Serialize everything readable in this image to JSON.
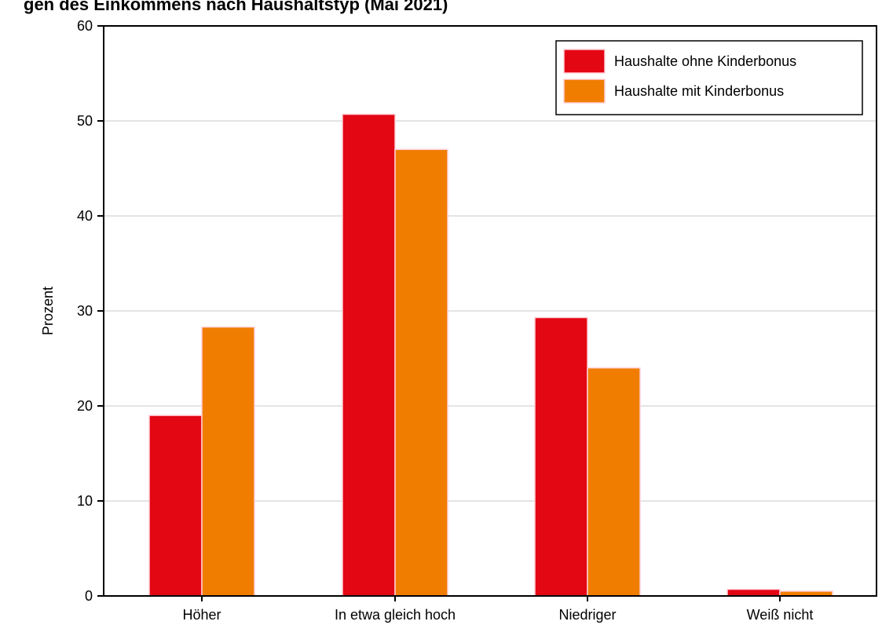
{
  "chart_data": {
    "type": "bar",
    "title": "gen des Einkommens nach Haushaltstyp (Mai 2021)",
    "ylabel": "Prozent",
    "xlabel": "",
    "ylim": [
      0,
      60
    ],
    "yticks": [
      0,
      10,
      20,
      30,
      40,
      50,
      60
    ],
    "categories": [
      "Höher",
      "In etwa gleich hoch",
      "Niedriger",
      "Weiß nicht"
    ],
    "series": [
      {
        "name": "Haushalte ohne Kinderbonus",
        "values": [
          19,
          50.7,
          29.3,
          0.7
        ],
        "color": "#e30613"
      },
      {
        "name": "Haushalte mit Kinderbonus",
        "values": [
          28.3,
          47,
          24,
          0.5
        ],
        "color": "#f07d00"
      }
    ],
    "grid": true,
    "legend_position": "top-right"
  }
}
